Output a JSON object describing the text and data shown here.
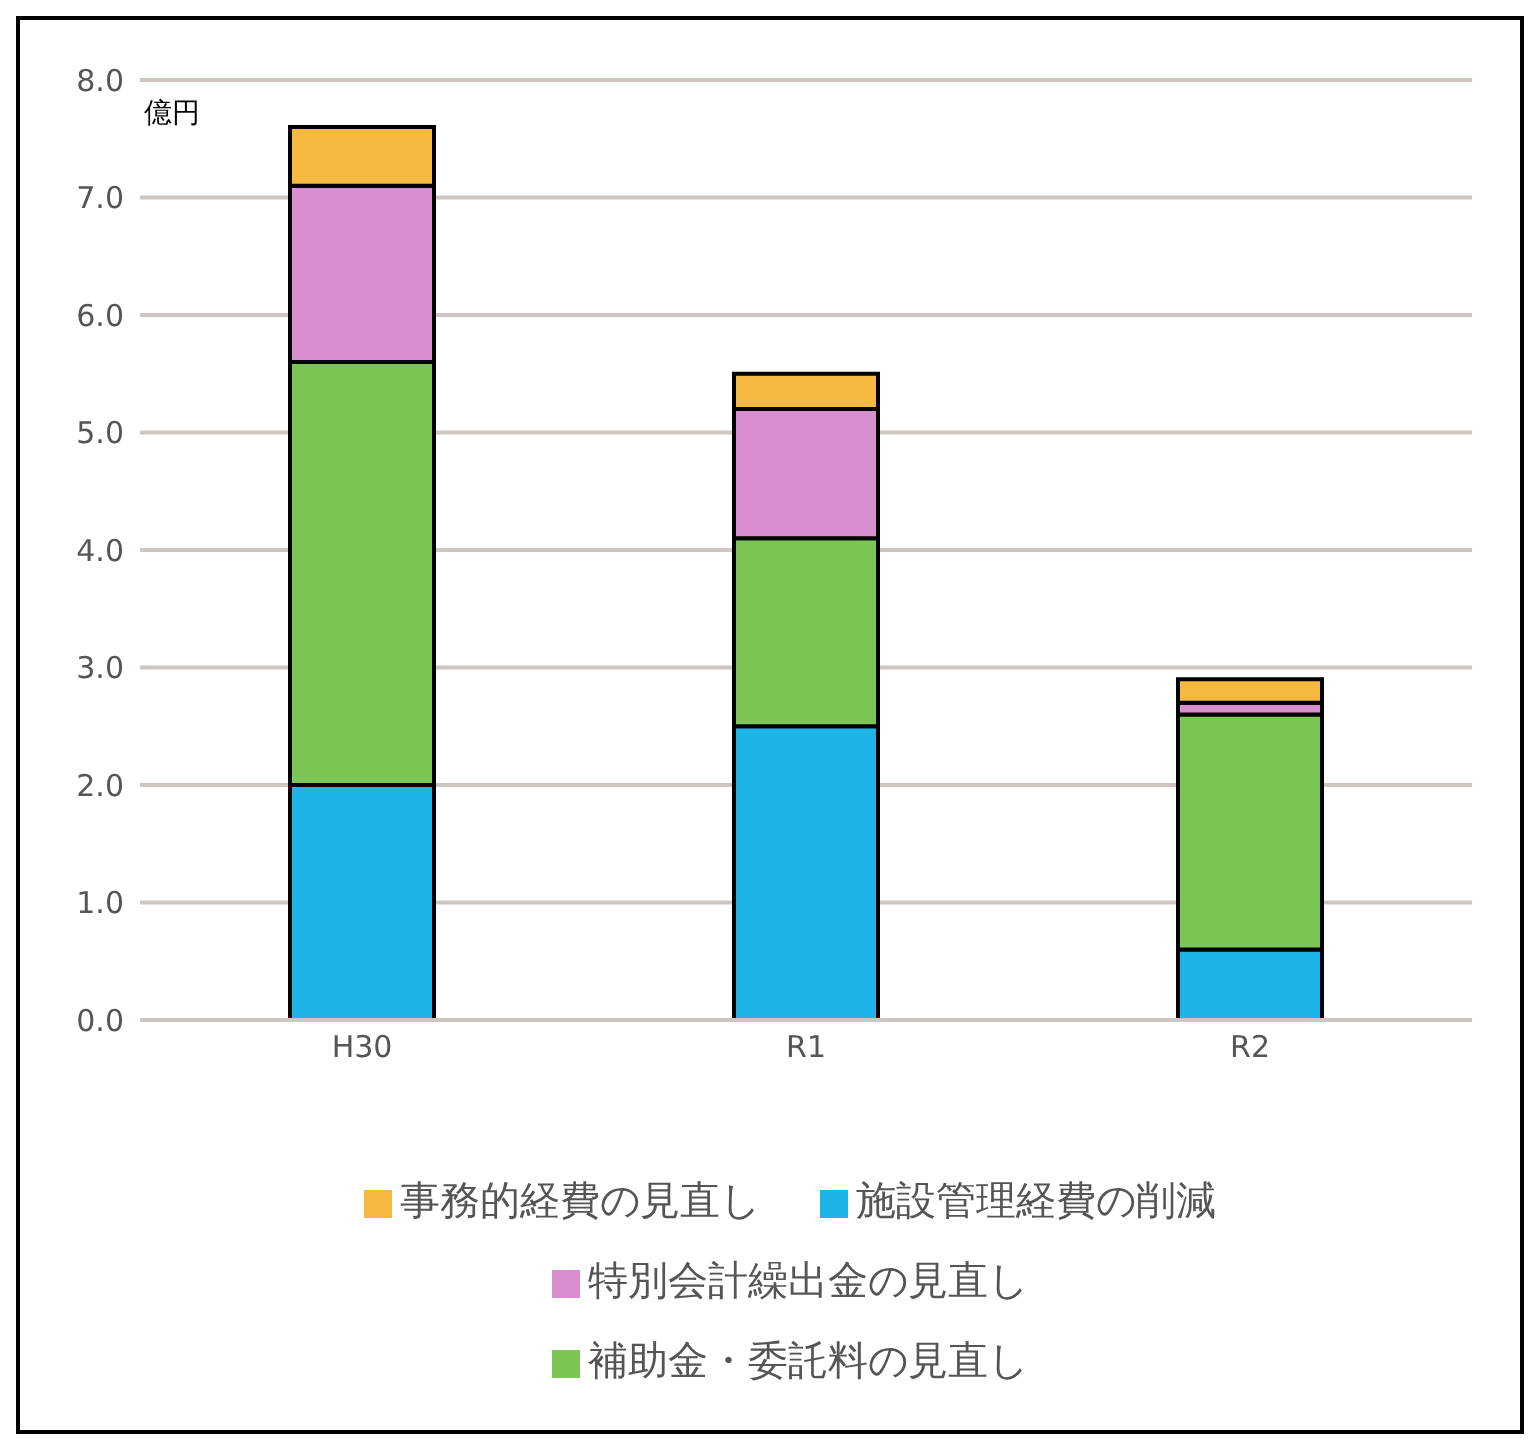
{
  "chart_data": {
    "type": "bar",
    "ylabel": "億円",
    "categories": [
      "H30",
      "R1",
      "R2"
    ],
    "stacked": true,
    "series": [
      {
        "name": "施設管理経費の削減",
        "color": "#1fb4e8",
        "values": [
          2.0,
          2.5,
          0.6
        ]
      },
      {
        "name": "補助金・委託料の見直し",
        "color": "#7cc656",
        "values": [
          3.6,
          1.6,
          2.0
        ]
      },
      {
        "name": "特別会計繰出金の見直し",
        "color": "#d78fd0",
        "values": [
          1.5,
          1.1,
          0.1
        ]
      },
      {
        "name": "事務的経費の見直し",
        "color": "#f5b942",
        "values": [
          0.5,
          0.3,
          0.2
        ]
      }
    ],
    "ylim": [
      0,
      8
    ],
    "yticks": [
      {
        "value": 0,
        "label": "0.0"
      },
      {
        "value": 1,
        "label": "1.0"
      },
      {
        "value": 2,
        "label": "2.0"
      },
      {
        "value": 3,
        "label": "3.0"
      },
      {
        "value": 4,
        "label": "4.0"
      },
      {
        "value": 5,
        "label": "5.0"
      },
      {
        "value": 6,
        "label": "6.0"
      },
      {
        "value": 7,
        "label": "7.0"
      },
      {
        "value": 8,
        "label": "8.0"
      }
    ],
    "grid": "y",
    "legend": "bottom"
  }
}
